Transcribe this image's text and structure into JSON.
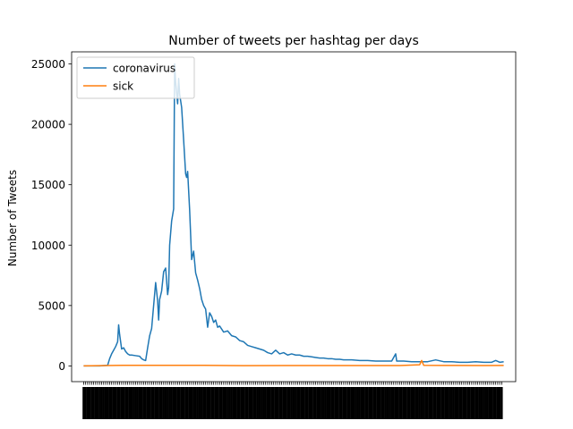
{
  "chart_data": {
    "type": "line",
    "title": "Number of tweets per hashtag per days",
    "xlabel": "",
    "ylabel": "Number of Tweets",
    "yticks": [
      0,
      5000,
      10000,
      15000,
      20000,
      25000
    ],
    "ylim": [
      -1300,
      26000
    ],
    "xlim": [
      -6,
      216
    ],
    "n_days": 210,
    "legend_position": "upper-left",
    "grid": false,
    "x_tick_labels_note": "x tick labels are dense and illegible",
    "series": [
      {
        "name": "coronavirus",
        "color": "#1f77b4",
        "points": [
          [
            0,
            0
          ],
          [
            8,
            0
          ],
          [
            12,
            50
          ],
          [
            13,
            600
          ],
          [
            14,
            1000
          ],
          [
            15,
            1300
          ],
          [
            16,
            1600
          ],
          [
            17,
            2000
          ],
          [
            17.5,
            3400
          ],
          [
            18,
            2600
          ],
          [
            19,
            1400
          ],
          [
            20,
            1500
          ],
          [
            21,
            1200
          ],
          [
            22,
            1000
          ],
          [
            23,
            900
          ],
          [
            24,
            900
          ],
          [
            26,
            850
          ],
          [
            28,
            800
          ],
          [
            29,
            600
          ],
          [
            30,
            500
          ],
          [
            31,
            450
          ],
          [
            32,
            1500
          ],
          [
            33,
            2500
          ],
          [
            34,
            3100
          ],
          [
            35,
            5000
          ],
          [
            36,
            6900
          ],
          [
            37,
            5400
          ],
          [
            37.5,
            3800
          ],
          [
            38,
            5500
          ],
          [
            39,
            6200
          ],
          [
            40,
            7800
          ],
          [
            41,
            8100
          ],
          [
            42,
            5900
          ],
          [
            42.5,
            6500
          ],
          [
            43,
            10000
          ],
          [
            44,
            12000
          ],
          [
            45,
            13000
          ],
          [
            45.5,
            25000
          ],
          [
            46,
            23500
          ],
          [
            47,
            21700
          ],
          [
            47.5,
            23800
          ],
          [
            48,
            22500
          ],
          [
            49,
            21400
          ],
          [
            50,
            18700
          ],
          [
            51,
            15900
          ],
          [
            51.5,
            15600
          ],
          [
            52,
            16100
          ],
          [
            53,
            12900
          ],
          [
            54,
            8800
          ],
          [
            55,
            9500
          ],
          [
            56,
            7700
          ],
          [
            57,
            7100
          ],
          [
            58,
            6400
          ],
          [
            59,
            5500
          ],
          [
            60,
            5000
          ],
          [
            61,
            4700
          ],
          [
            62,
            3200
          ],
          [
            63,
            4400
          ],
          [
            64,
            4100
          ],
          [
            65,
            3600
          ],
          [
            66,
            3800
          ],
          [
            67,
            3200
          ],
          [
            68,
            3300
          ],
          [
            70,
            2800
          ],
          [
            72,
            2900
          ],
          [
            74,
            2500
          ],
          [
            76,
            2400
          ],
          [
            78,
            2100
          ],
          [
            80,
            2000
          ],
          [
            82,
            1700
          ],
          [
            84,
            1600
          ],
          [
            86,
            1500
          ],
          [
            88,
            1400
          ],
          [
            90,
            1300
          ],
          [
            92,
            1100
          ],
          [
            94,
            1000
          ],
          [
            96,
            1300
          ],
          [
            98,
            1000
          ],
          [
            100,
            1100
          ],
          [
            102,
            900
          ],
          [
            104,
            1000
          ],
          [
            106,
            900
          ],
          [
            108,
            900
          ],
          [
            110,
            800
          ],
          [
            112,
            800
          ],
          [
            114,
            750
          ],
          [
            116,
            700
          ],
          [
            118,
            650
          ],
          [
            120,
            650
          ],
          [
            122,
            600
          ],
          [
            124,
            600
          ],
          [
            126,
            550
          ],
          [
            128,
            550
          ],
          [
            130,
            500
          ],
          [
            134,
            500
          ],
          [
            138,
            450
          ],
          [
            142,
            450
          ],
          [
            146,
            400
          ],
          [
            150,
            400
          ],
          [
            154,
            400
          ],
          [
            156,
            1000
          ],
          [
            156.5,
            400
          ],
          [
            160,
            400
          ],
          [
            164,
            350
          ],
          [
            168,
            350
          ],
          [
            172,
            350
          ],
          [
            176,
            500
          ],
          [
            180,
            350
          ],
          [
            184,
            350
          ],
          [
            188,
            300
          ],
          [
            192,
            300
          ],
          [
            196,
            350
          ],
          [
            200,
            300
          ],
          [
            204,
            300
          ],
          [
            206,
            450
          ],
          [
            208,
            300
          ],
          [
            210,
            350
          ]
        ]
      },
      {
        "name": "sick",
        "color": "#ff7f0e",
        "points": [
          [
            0,
            0
          ],
          [
            20,
            50
          ],
          [
            40,
            50
          ],
          [
            60,
            50
          ],
          [
            80,
            20
          ],
          [
            100,
            30
          ],
          [
            130,
            30
          ],
          [
            158,
            30
          ],
          [
            168,
            100
          ],
          [
            169,
            450
          ],
          [
            170,
            50
          ],
          [
            180,
            40
          ],
          [
            200,
            30
          ],
          [
            210,
            40
          ]
        ]
      }
    ]
  }
}
